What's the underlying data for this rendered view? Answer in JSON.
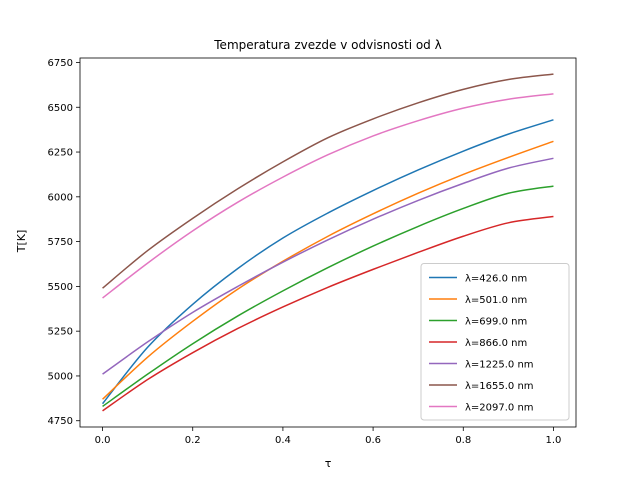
{
  "chart_data": {
    "type": "line",
    "title": "Temperatura zvezde v odvisnosti od λ",
    "xlabel": "τ",
    "ylabel": "T[K]",
    "xlim": [
      -0.05,
      1.05
    ],
    "ylim": [
      4715,
      6775
    ],
    "xticks": [
      0.0,
      0.2,
      0.4,
      0.6,
      0.8,
      1.0
    ],
    "xtick_labels": [
      "0.0",
      "0.2",
      "0.4",
      "0.6",
      "0.8",
      "1.0"
    ],
    "yticks": [
      4750,
      5000,
      5250,
      5500,
      5750,
      6000,
      6250,
      6500,
      6750
    ],
    "ytick_labels": [
      "4750",
      "5000",
      "5250",
      "5500",
      "5750",
      "6000",
      "6250",
      "6500",
      "6750"
    ],
    "grid": false,
    "legend_position": "lower-right",
    "x": [
      0.0,
      0.1,
      0.2,
      0.3,
      0.4,
      0.5,
      0.6,
      0.7,
      0.8,
      0.9,
      1.0
    ],
    "series": [
      {
        "name": "λ=426.0 nm",
        "color": "#1f77b4",
        "values": [
          4845,
          5160,
          5400,
          5600,
          5770,
          5910,
          6035,
          6150,
          6255,
          6350,
          6430
        ]
      },
      {
        "name": "λ=501.0 nm",
        "color": "#ff7f0e",
        "values": [
          4870,
          5105,
          5305,
          5485,
          5640,
          5780,
          5905,
          6020,
          6125,
          6220,
          6310
        ]
      },
      {
        "name": "λ=699.0 nm",
        "color": "#2ca02c",
        "values": [
          4830,
          5010,
          5180,
          5335,
          5475,
          5605,
          5725,
          5835,
          5935,
          6020,
          6060
        ]
      },
      {
        "name": "λ=866.0 nm",
        "color": "#d62728",
        "values": [
          4805,
          4980,
          5130,
          5265,
          5385,
          5495,
          5595,
          5690,
          5780,
          5855,
          5890
        ]
      },
      {
        "name": "λ=1225.0 nm",
        "color": "#9467bd",
        "values": [
          5010,
          5190,
          5355,
          5500,
          5635,
          5760,
          5875,
          5980,
          6075,
          6160,
          6215
        ]
      },
      {
        "name": "λ=1655.0 nm",
        "color": "#8c564b",
        "values": [
          5490,
          5700,
          5880,
          6045,
          6195,
          6330,
          6435,
          6525,
          6600,
          6655,
          6685
        ]
      },
      {
        "name": "λ=2097.0 nm",
        "color": "#e377c2",
        "values": [
          5435,
          5630,
          5810,
          5970,
          6110,
          6235,
          6340,
          6425,
          6495,
          6545,
          6575
        ]
      }
    ]
  }
}
